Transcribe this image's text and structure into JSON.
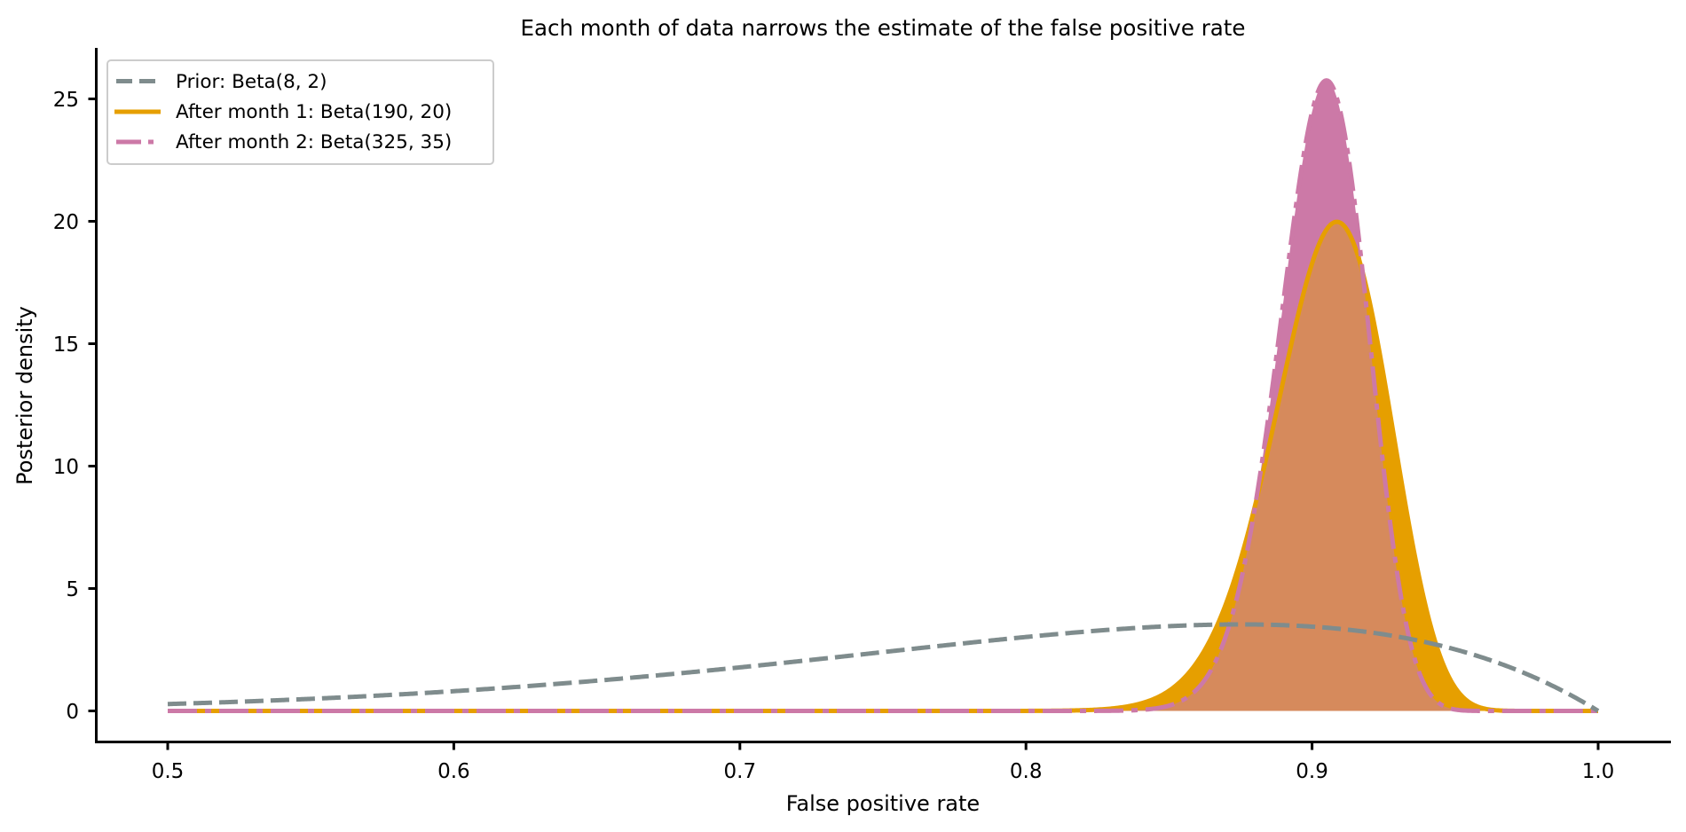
{
  "chart_data": {
    "type": "line",
    "title": "Each month of data narrows the estimate of the false positive rate",
    "xlabel": "False positive rate",
    "ylabel": "Posterior density",
    "xlim": [
      0.475,
      1.025
    ],
    "ylim": [
      -1.3,
      27.1
    ],
    "xticks": [
      0.5,
      0.6,
      0.7,
      0.8,
      0.9,
      1.0
    ],
    "xtick_labels": [
      "0.5",
      "0.6",
      "0.7",
      "0.8",
      "0.9",
      "1.0"
    ],
    "yticks": [
      0,
      5,
      10,
      15,
      20,
      25
    ],
    "ytick_labels": [
      "0",
      "5",
      "10",
      "15",
      "20",
      "25"
    ],
    "grid": false,
    "legend_position": "upper left",
    "x": [
      0.5,
      0.55,
      0.6,
      0.65,
      0.7,
      0.75,
      0.8,
      0.85,
      0.86,
      0.87,
      0.88,
      0.89,
      0.9,
      0.91,
      0.92,
      0.93,
      0.94,
      0.95,
      0.96,
      1.0
    ],
    "series": [
      {
        "name": "Prior: Beta(8, 2)",
        "alpha": 8,
        "beta": 2,
        "color": "#7F8C8D",
        "linestyle": "dashed",
        "filled": false,
        "values": [
          0.28,
          0.49,
          0.81,
          1.24,
          1.78,
          2.4,
          3.02,
          3.46,
          3.5,
          3.53,
          3.52,
          3.49,
          3.44,
          3.31,
          3.12,
          2.88,
          2.61,
          2.51,
          2.07,
          0.0
        ]
      },
      {
        "name": "After month 1: Beta(190, 20)",
        "alpha": 190,
        "beta": 20,
        "color": "#E69F00",
        "linestyle": "solid",
        "filled": true,
        "values": [
          0,
          0,
          0,
          0,
          0,
          0,
          0.0,
          0.82,
          2.2,
          4.4,
          8.3,
          13.5,
          18.3,
          19.95,
          16.7,
          10.2,
          4.1,
          0.96,
          0.1,
          0
        ]
      },
      {
        "name": "After month 2: Beta(325, 35)",
        "alpha": 325,
        "beta": 35,
        "color": "#CC79A7",
        "linestyle": "dashdot",
        "filled": true,
        "values": [
          0,
          0,
          0,
          0,
          0,
          0,
          0,
          0.1,
          0.91,
          3.1,
          8.3,
          16.8,
          24.6,
          24.5,
          15.4,
          5.45,
          0.92,
          0.06,
          0.0,
          0
        ]
      }
    ],
    "overlap_color": "#D68A5C"
  },
  "legend": {
    "items": [
      {
        "label": "Prior: Beta(8, 2)"
      },
      {
        "label": "After month 1: Beta(190, 20)"
      },
      {
        "label": "After month 2: Beta(325, 35)"
      }
    ]
  }
}
